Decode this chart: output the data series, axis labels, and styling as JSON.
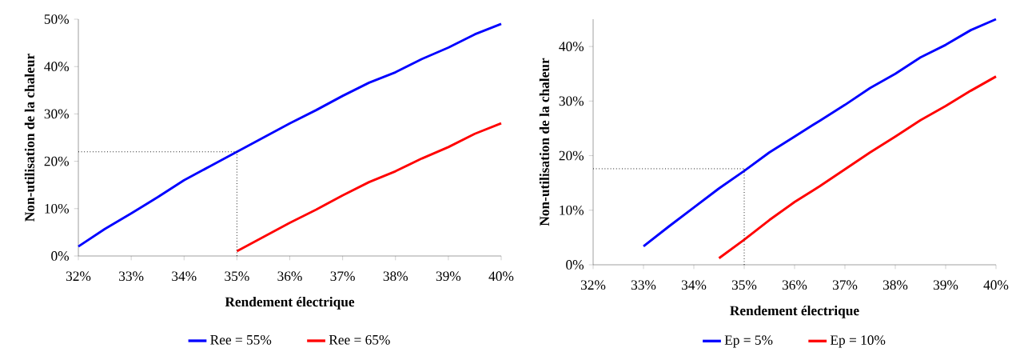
{
  "chart_data": [
    {
      "type": "line",
      "xlabel": "Rendement électrique",
      "ylabel": "Non-utilisation de la chaleur",
      "xlim": [
        32,
        40
      ],
      "ylim": [
        0,
        50
      ],
      "xticks": [
        {
          "value": 32,
          "label": "32%"
        },
        {
          "value": 33,
          "label": "33%"
        },
        {
          "value": 34,
          "label": "34%"
        },
        {
          "value": 35,
          "label": "35%"
        },
        {
          "value": 36,
          "label": "36%"
        },
        {
          "value": 37,
          "label": "37%"
        },
        {
          "value": 38,
          "label": "38%"
        },
        {
          "value": 39,
          "label": "39%"
        },
        {
          "value": 40,
          "label": "40%"
        }
      ],
      "yticks": [
        {
          "value": 0,
          "label": "0%"
        },
        {
          "value": 10,
          "label": "10%"
        },
        {
          "value": 20,
          "label": "20%"
        },
        {
          "value": 30,
          "label": "30%"
        },
        {
          "value": 40,
          "label": "40%"
        },
        {
          "value": 50,
          "label": "50%"
        }
      ],
      "series": [
        {
          "name": "Ree = 55%",
          "color": "#0000ff",
          "x": [
            32,
            32.5,
            33,
            33.5,
            34,
            34.5,
            35,
            35.5,
            36,
            36.5,
            37,
            37.5,
            38,
            38.5,
            39,
            39.5,
            40
          ],
          "values": [
            2,
            5.7,
            9,
            12.4,
            16,
            19,
            22,
            25,
            28,
            30.8,
            33.8,
            36.6,
            38.8,
            41.6,
            44,
            46.8,
            49
          ]
        },
        {
          "name": "Ree = 65%",
          "color": "#ff0000",
          "x": [
            35,
            35.5,
            36,
            36.5,
            37,
            37.5,
            38,
            38.5,
            39,
            39.5,
            40
          ],
          "values": [
            1,
            4,
            7,
            9.8,
            12.8,
            15.6,
            17.9,
            20.6,
            23,
            25.8,
            28
          ]
        }
      ],
      "ref_lines": [
        {
          "axis": "y",
          "value": 22,
          "color": "#000000",
          "line_style": "dotted"
        },
        {
          "axis": "x",
          "value": 35,
          "color": "#000000",
          "line_style": "dotted"
        }
      ],
      "legend": "bottom"
    },
    {
      "type": "line",
      "xlabel": "Rendement électrique",
      "ylabel": "Non-utilisation de la chaleur",
      "xlim": [
        32,
        40
      ],
      "ylim": [
        0,
        45
      ],
      "xticks": [
        {
          "value": 32,
          "label": "32%"
        },
        {
          "value": 33,
          "label": "33%"
        },
        {
          "value": 34,
          "label": "34%"
        },
        {
          "value": 35,
          "label": "35%"
        },
        {
          "value": 36,
          "label": "36%"
        },
        {
          "value": 37,
          "label": "37%"
        },
        {
          "value": 38,
          "label": "38%"
        },
        {
          "value": 39,
          "label": "39%"
        },
        {
          "value": 40,
          "label": "40%"
        }
      ],
      "yticks": [
        {
          "value": 0,
          "label": "0%"
        },
        {
          "value": 10,
          "label": "10%"
        },
        {
          "value": 20,
          "label": "20%"
        },
        {
          "value": 30,
          "label": "30%"
        },
        {
          "value": 40,
          "label": "40%"
        }
      ],
      "series": [
        {
          "name": "Ep = 5%",
          "color": "#0000ff",
          "x": [
            33,
            33.5,
            34,
            34.5,
            35,
            35.5,
            36,
            36.5,
            37,
            37.5,
            38,
            38.5,
            39,
            39.5,
            40
          ],
          "values": [
            3.4,
            7,
            10.5,
            14,
            17.2,
            20.6,
            23.5,
            26.4,
            29.3,
            32.4,
            35,
            38,
            40.3,
            43,
            45
          ]
        },
        {
          "name": "Ep = 10%",
          "color": "#ff0000",
          "x": [
            34.5,
            35,
            35.5,
            36,
            36.5,
            37,
            37.5,
            38,
            38.5,
            39,
            39.5,
            40
          ],
          "values": [
            1.2,
            4.6,
            8.2,
            11.5,
            14.4,
            17.5,
            20.6,
            23.5,
            26.5,
            29.1,
            31.9,
            34.5
          ]
        }
      ],
      "ref_lines": [
        {
          "axis": "y",
          "value": 17.6,
          "color": "#000000",
          "line_style": "dotted"
        },
        {
          "axis": "x",
          "value": 35,
          "color": "#000000",
          "line_style": "dotted"
        }
      ],
      "legend": "bottom"
    }
  ]
}
